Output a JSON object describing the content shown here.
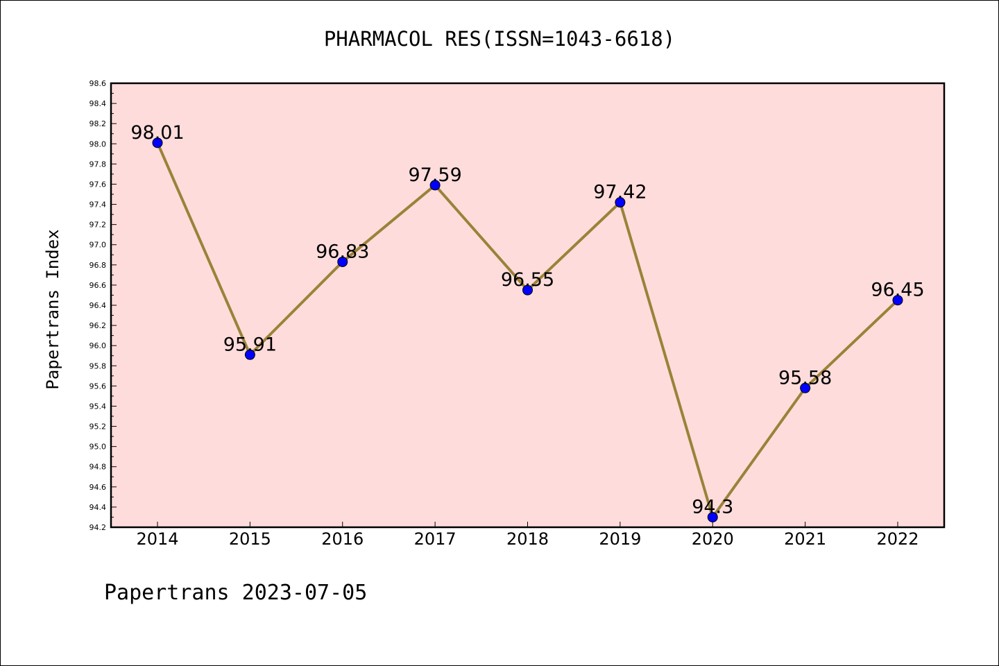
{
  "chart_data": {
    "type": "line",
    "title": "PHARMACOL RES(ISSN=1043-6618)",
    "xlabel": "",
    "ylabel": "Papertrans Index",
    "categories": [
      "2014",
      "2015",
      "2016",
      "2017",
      "2018",
      "2019",
      "2020",
      "2021",
      "2022"
    ],
    "series": [
      {
        "values": [
          98.01,
          95.91,
          96.83,
          97.59,
          96.55,
          97.42,
          94.3,
          95.58,
          96.45
        ],
        "labels": [
          "98.01",
          "95.91",
          "96.83",
          "97.59",
          "96.55",
          "97.42",
          "94.3",
          "95.58",
          "96.45"
        ]
      }
    ],
    "ylim": [
      94.2,
      98.6
    ],
    "yticks": [
      "94.2",
      "94.4",
      "94.6",
      "94.8",
      "95.0",
      "95.2",
      "95.4",
      "95.6",
      "95.8",
      "96.0",
      "96.2",
      "96.4",
      "96.6",
      "96.8",
      "97.0",
      "97.2",
      "97.4",
      "97.6",
      "97.8",
      "98.0",
      "98.2",
      "98.4",
      "98.6"
    ],
    "grid": false,
    "legend": "none",
    "colors": {
      "plot_bg": "#FFDCDC",
      "line": "#9A8238",
      "marker": "#0000FF"
    }
  },
  "footer": "Papertrans 2023-07-05"
}
